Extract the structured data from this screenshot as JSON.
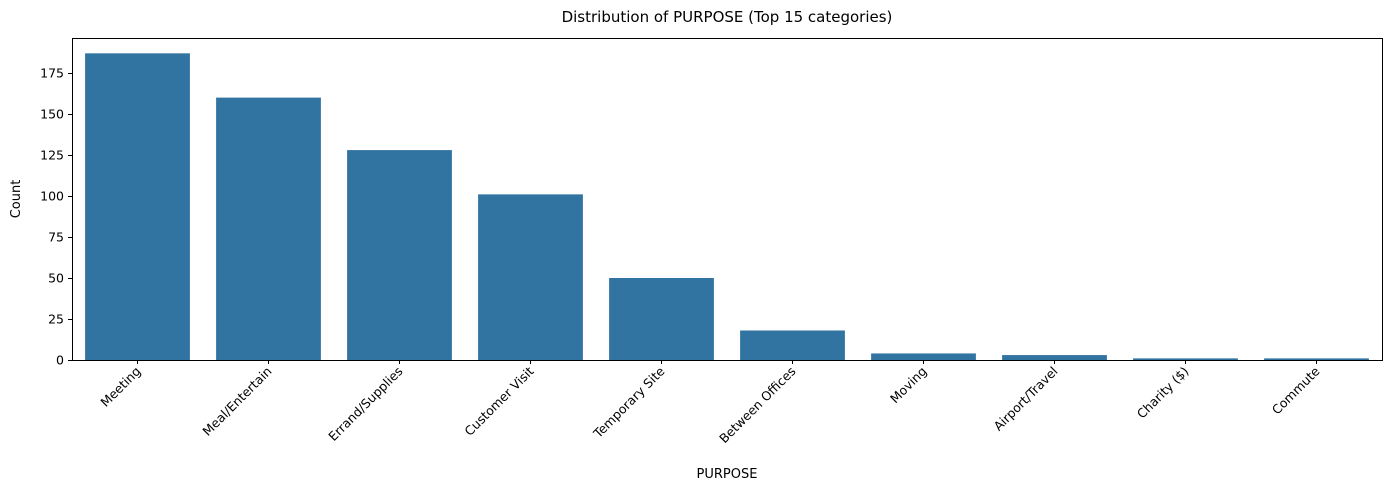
{
  "chart_data": {
    "type": "bar",
    "title": "Distribution of PURPOSE (Top 15 categories)",
    "xlabel": "PURPOSE",
    "ylabel": "Count",
    "categories": [
      "Meeting",
      "Meal/Entertain",
      "Errand/Supplies",
      "Customer Visit",
      "Temporary Site",
      "Between Offices",
      "Moving",
      "Airport/Travel",
      "Charity ($)",
      "Commute"
    ],
    "values": [
      187,
      160,
      128,
      101,
      50,
      18,
      4,
      3,
      1,
      1
    ],
    "ylim": [
      0,
      196.35
    ],
    "yticks": [
      0,
      25,
      50,
      75,
      100,
      125,
      150,
      175
    ],
    "ytick_labels": [
      "0",
      "25",
      "50",
      "75",
      "100",
      "125",
      "150",
      "175"
    ],
    "bar_color": "#3274a1",
    "grid": false
  }
}
